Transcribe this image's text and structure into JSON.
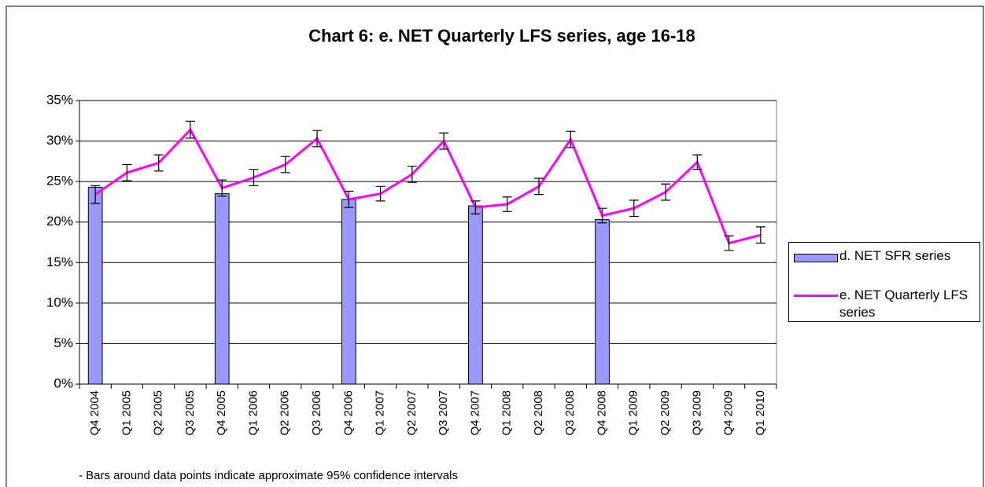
{
  "chart_data": {
    "type": "bar_line",
    "title": "Chart 6: e. NET Quarterly LFS series, age 16-18",
    "annotation": "- Bars around data points indicate approximate 95% confidence intervals",
    "categories": [
      "Q4 2004",
      "Q1 2005",
      "Q2 2005",
      "Q3 2005",
      "Q4 2005",
      "Q1 2006",
      "Q2 2006",
      "Q3 2006",
      "Q4 2006",
      "Q1 2007",
      "Q2 2007",
      "Q3 2007",
      "Q4 2007",
      "Q1 2008",
      "Q2 2008",
      "Q3 2008",
      "Q4 2008",
      "Q1 2009",
      "Q2 2009",
      "Q3 2009",
      "Q4 2009",
      "Q1 2010"
    ],
    "series": [
      {
        "name": "d. NET SFR series",
        "type": "bar",
        "color": "#9999ff",
        "values": [
          24.3,
          null,
          null,
          null,
          23.5,
          null,
          null,
          null,
          22.8,
          null,
          null,
          null,
          22.0,
          null,
          null,
          null,
          20.3,
          null,
          null,
          null,
          null,
          null
        ]
      },
      {
        "name": "e. NET Quarterly LFS series",
        "type": "line",
        "color": "#ff00ff",
        "values": [
          23.4,
          26.1,
          27.3,
          31.4,
          24.2,
          25.5,
          27.1,
          30.3,
          22.8,
          23.5,
          25.9,
          30.0,
          21.8,
          22.2,
          24.4,
          30.2,
          20.8,
          21.7,
          23.7,
          27.4,
          17.4,
          18.4
        ],
        "errors": [
          1.1,
          1.0,
          1.0,
          1.05,
          1.0,
          1.0,
          1.0,
          1.0,
          1.0,
          0.9,
          1.0,
          1.0,
          0.8,
          0.9,
          1.0,
          1.0,
          0.9,
          1.0,
          1.0,
          0.9,
          0.9,
          1.0
        ]
      }
    ],
    "ylim": [
      0,
      35
    ],
    "yticks": [
      {
        "value": 0,
        "label": "0%"
      },
      {
        "value": 5,
        "label": "5%"
      },
      {
        "value": 10,
        "label": "10%"
      },
      {
        "value": 15,
        "label": "15%"
      },
      {
        "value": 20,
        "label": "20%"
      },
      {
        "value": 25,
        "label": "25%"
      },
      {
        "value": 30,
        "label": "30%"
      },
      {
        "value": 35,
        "label": "35%"
      }
    ],
    "grid": true
  }
}
